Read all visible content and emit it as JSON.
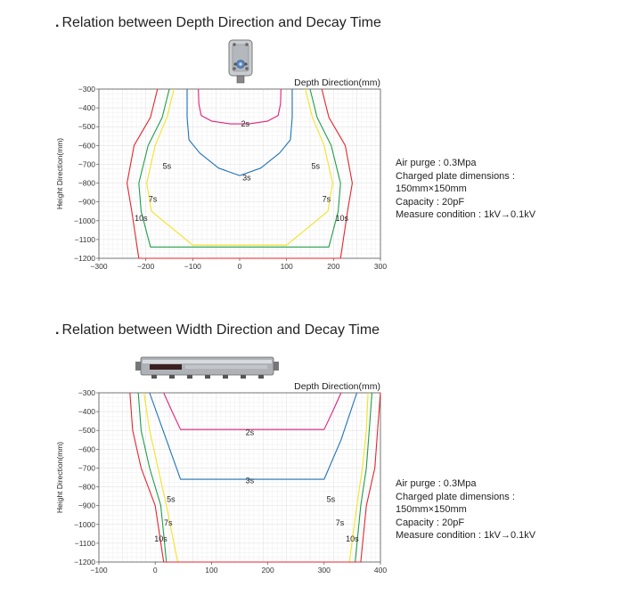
{
  "charts": [
    {
      "title": "Relation between Depth Direction and Decay Time",
      "notes": [
        "Air purge : 0.3Mpa",
        "Charged plate dimensions :",
        "150mm×150mm",
        "Capacity : 20pF",
        "Measure condition : 1kV→0.1kV"
      ]
    },
    {
      "title": "Relation between Width Direction and Decay Time",
      "notes": [
        "Air purge : 0.3Mpa",
        "Charged plate dimensions :",
        "150mm×150mm",
        "Capacity : 20pF",
        "Measure condition : 1kV→0.1kV"
      ]
    }
  ],
  "chart_data": [
    {
      "type": "line",
      "title": "Relation between Depth Direction and Decay Time",
      "xlabel": "Depth Direction(mm)",
      "ylabel": "Height Direction(mm)",
      "xlim": [
        -300,
        300
      ],
      "ylim": [
        -1200,
        -300
      ],
      "xticks": [
        -300,
        -200,
        -100,
        0,
        100,
        200,
        300
      ],
      "yticks": [
        -300,
        -400,
        -500,
        -600,
        -700,
        -800,
        -900,
        -1000,
        -1100,
        -1200
      ],
      "grid": true,
      "series": [
        {
          "name": "2s",
          "color": "#e0217a",
          "x": [
            -88,
            -87,
            -82,
            -60,
            -20,
            20,
            60,
            82,
            87,
            88
          ],
          "y": [
            -300,
            -380,
            -440,
            -470,
            -485,
            -485,
            -470,
            -440,
            -380,
            -300
          ]
        },
        {
          "name": "3s",
          "color": "#1e72b8",
          "x": [
            -112,
            -112,
            -108,
            -85,
            -45,
            0,
            45,
            85,
            108,
            112,
            112
          ],
          "y": [
            -300,
            -450,
            -570,
            -640,
            -720,
            -760,
            -720,
            -640,
            -570,
            -450,
            -300
          ]
        },
        {
          "name": "5s",
          "color": "#f4e225",
          "x": [
            -140,
            -155,
            -180,
            -198,
            -188,
            -100,
            100,
            188,
            198,
            180,
            155,
            140
          ],
          "y": [
            -300,
            -450,
            -600,
            -800,
            -950,
            -1130,
            -1130,
            -950,
            -800,
            -600,
            -450,
            -300
          ]
        },
        {
          "name": "7s",
          "color": "#1f9e4a",
          "x": [
            -150,
            -165,
            -195,
            -215,
            -210,
            -190,
            190,
            210,
            215,
            195,
            165,
            150
          ],
          "y": [
            -300,
            -450,
            -600,
            -800,
            -950,
            -1140,
            -1140,
            -950,
            -800,
            -600,
            -450,
            -300
          ]
        },
        {
          "name": "10s",
          "color": "#e4262e",
          "x": [
            -175,
            -190,
            -225,
            -240,
            -230,
            -215,
            215,
            230,
            240,
            225,
            190,
            175
          ],
          "y": [
            -300,
            -450,
            -600,
            -800,
            -950,
            -1200,
            -1200,
            -950,
            -800,
            -600,
            -450,
            -300
          ]
        }
      ],
      "labels": [
        {
          "text": "2s",
          "x": 12,
          "y": -500
        },
        {
          "text": "3s",
          "x": 15,
          "y": -785
        },
        {
          "text": "5s",
          "x": -155,
          "y": -725
        },
        {
          "text": "5s",
          "x": 162,
          "y": -725
        },
        {
          "text": "7s",
          "x": -185,
          "y": -900
        },
        {
          "text": "7s",
          "x": 185,
          "y": -900
        },
        {
          "text": "10s",
          "x": -210,
          "y": -1000
        },
        {
          "text": "10s",
          "x": 218,
          "y": -1000
        }
      ]
    },
    {
      "type": "line",
      "title": "Relation between Width Direction and Decay Time",
      "xlabel": "Depth Direction(mm)",
      "ylabel": "Height Direction(mm)",
      "xlim": [
        -100,
        400
      ],
      "ylim": [
        -1200,
        -300
      ],
      "xticks": [
        -100,
        0,
        100,
        200,
        300,
        400
      ],
      "yticks": [
        -300,
        -400,
        -500,
        -600,
        -700,
        -800,
        -900,
        -1000,
        -1100,
        -1200
      ],
      "grid": true,
      "series": [
        {
          "name": "2s",
          "color": "#e0217a",
          "x": [
            15,
            30,
            45,
            300,
            315,
            330
          ],
          "y": [
            -300,
            -400,
            -495,
            -495,
            -400,
            -300
          ]
        },
        {
          "name": "3s",
          "color": "#1e72b8",
          "x": [
            -10,
            20,
            45,
            300,
            330,
            358
          ],
          "y": [
            -300,
            -550,
            -760,
            -760,
            -550,
            -300
          ]
        },
        {
          "name": "5s",
          "color": "#f4e225",
          "x": [
            -20,
            -10,
            5,
            20,
            40,
            345,
            358,
            368,
            375,
            378
          ],
          "y": [
            -300,
            -500,
            -700,
            -900,
            -1200,
            -1200,
            -900,
            -700,
            -500,
            -300
          ]
        },
        {
          "name": "7s",
          "color": "#1f9e4a",
          "x": [
            -30,
            -25,
            -10,
            10,
            20,
            355,
            365,
            375,
            380,
            385
          ],
          "y": [
            -300,
            -500,
            -700,
            -900,
            -1200,
            -1200,
            -900,
            -700,
            -500,
            -300
          ]
        },
        {
          "name": "10s",
          "color": "#e4262e",
          "x": [
            -45,
            -40,
            -25,
            0,
            15,
            365,
            375,
            390,
            395,
            400
          ],
          "y": [
            -300,
            -500,
            -700,
            -900,
            -1200,
            -1200,
            -900,
            -700,
            -500,
            -300
          ]
        }
      ],
      "labels": [
        {
          "text": "2s",
          "x": 168,
          "y": -525
        },
        {
          "text": "3s",
          "x": 168,
          "y": -780
        },
        {
          "text": "5s",
          "x": 28,
          "y": -880
        },
        {
          "text": "5s",
          "x": 312,
          "y": -880
        },
        {
          "text": "7s",
          "x": 23,
          "y": -1005
        },
        {
          "text": "7s",
          "x": 328,
          "y": -1005
        },
        {
          "text": "10s",
          "x": 10,
          "y": -1090
        },
        {
          "text": "10s",
          "x": 350,
          "y": -1090
        }
      ]
    }
  ]
}
